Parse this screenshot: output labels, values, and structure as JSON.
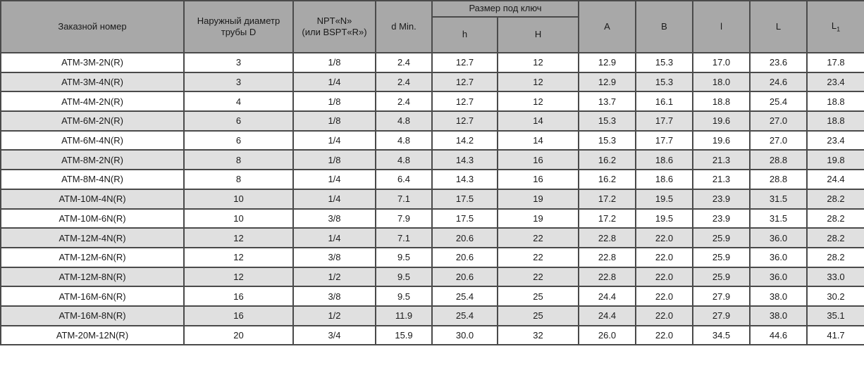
{
  "table": {
    "title": "ATM fittings dimensions table",
    "headers": {
      "order_number": "Заказной номер",
      "outer_diameter_line1": "Наружный диаметр",
      "outer_diameter_line2": "трубы D",
      "npt_line1": "NPT«N»",
      "npt_line2": "(или BSPT«R»)",
      "d_min": "d Min.",
      "wrench_size": "Размер под ключ",
      "h_small": "h",
      "h_big": "H",
      "col_a": "A",
      "col_b": "B",
      "col_l_small": "l",
      "col_l_big": "L",
      "col_l1_base": "L",
      "col_l1_sub": "1"
    },
    "rows": [
      [
        "ATM-3M-2N(R)",
        "3",
        "1/8",
        "2.4",
        "12.7",
        "12",
        "12.9",
        "15.3",
        "17.0",
        "23.6",
        "17.8"
      ],
      [
        "ATM-3M-4N(R)",
        "3",
        "1/4",
        "2.4",
        "12.7",
        "12",
        "12.9",
        "15.3",
        "18.0",
        "24.6",
        "23.4"
      ],
      [
        "ATM-4M-2N(R)",
        "4",
        "1/8",
        "2.4",
        "12.7",
        "12",
        "13.7",
        "16.1",
        "18.8",
        "25.4",
        "18.8"
      ],
      [
        "ATM-6M-2N(R)",
        "6",
        "1/8",
        "4.8",
        "12.7",
        "14",
        "15.3",
        "17.7",
        "19.6",
        "27.0",
        "18.8"
      ],
      [
        "ATM-6M-4N(R)",
        "6",
        "1/4",
        "4.8",
        "14.2",
        "14",
        "15.3",
        "17.7",
        "19.6",
        "27.0",
        "23.4"
      ],
      [
        "ATM-8M-2N(R)",
        "8",
        "1/8",
        "4.8",
        "14.3",
        "16",
        "16.2",
        "18.6",
        "21.3",
        "28.8",
        "19.8"
      ],
      [
        "ATM-8M-4N(R)",
        "8",
        "1/4",
        "6.4",
        "14.3",
        "16",
        "16.2",
        "18.6",
        "21.3",
        "28.8",
        "24.4"
      ],
      [
        "ATM-10M-4N(R)",
        "10",
        "1/4",
        "7.1",
        "17.5",
        "19",
        "17.2",
        "19.5",
        "23.9",
        "31.5",
        "28.2"
      ],
      [
        "ATM-10M-6N(R)",
        "10",
        "3/8",
        "7.9",
        "17.5",
        "19",
        "17.2",
        "19.5",
        "23.9",
        "31.5",
        "28.2"
      ],
      [
        "ATM-12M-4N(R)",
        "12",
        "1/4",
        "7.1",
        "20.6",
        "22",
        "22.8",
        "22.0",
        "25.9",
        "36.0",
        "28.2"
      ],
      [
        "ATM-12M-6N(R)",
        "12",
        "3/8",
        "9.5",
        "20.6",
        "22",
        "22.8",
        "22.0",
        "25.9",
        "36.0",
        "28.2"
      ],
      [
        "ATM-12M-8N(R)",
        "12",
        "1/2",
        "9.5",
        "20.6",
        "22",
        "22.8",
        "22.0",
        "25.9",
        "36.0",
        "33.0"
      ],
      [
        "ATM-16M-6N(R)",
        "16",
        "3/8",
        "9.5",
        "25.4",
        "25",
        "24.4",
        "22.0",
        "27.9",
        "38.0",
        "30.2"
      ],
      [
        "ATM-16M-8N(R)",
        "16",
        "1/2",
        "11.9",
        "25.4",
        "25",
        "24.4",
        "22.0",
        "27.9",
        "38.0",
        "35.1"
      ],
      [
        "ATM-20M-12N(R)",
        "20",
        "3/4",
        "15.9",
        "30.0",
        "32",
        "26.0",
        "22.0",
        "34.5",
        "44.6",
        "41.7"
      ]
    ],
    "colors": {
      "header_bg": "#a8a8a8",
      "stripe_bg": "#e0e0e0",
      "border": "#4a4a4a",
      "text": "#1a1a1a"
    }
  }
}
